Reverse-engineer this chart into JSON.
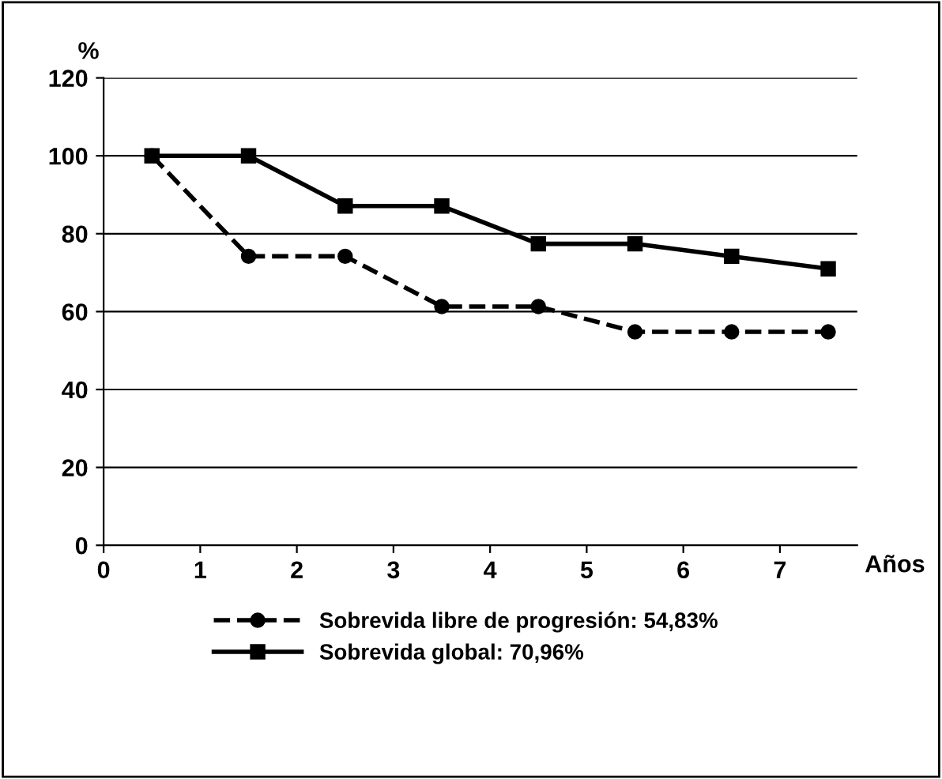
{
  "chart_data": {
    "type": "line",
    "ylabel": "%",
    "xlabel": "Años",
    "x": [
      0.5,
      1.5,
      2.5,
      3.5,
      4.5,
      5.5,
      6.5,
      7.5
    ],
    "series": [
      {
        "name": "Sobrevida libre de progresión: 54,83%",
        "color": "#000000",
        "values": [
          100,
          74.2,
          74.2,
          61.3,
          61.3,
          54.8,
          54.8,
          54.8
        ],
        "line_style": "dashed",
        "marker": "circle"
      },
      {
        "name": "Sobrevida global: 70,96%",
        "color": "#000000",
        "values": [
          100,
          100,
          87.1,
          87.1,
          77.4,
          77.4,
          74.2,
          71
        ],
        "line_style": "solid",
        "marker": "square"
      }
    ],
    "xlim": [
      0,
      7.8
    ],
    "ylim": [
      0,
      120
    ],
    "xticks": [
      0,
      1,
      2,
      3,
      4,
      5,
      6,
      7
    ],
    "yticks": [
      0,
      20,
      40,
      60,
      80,
      100,
      120
    ],
    "grid": "y",
    "legend": "bottom"
  }
}
